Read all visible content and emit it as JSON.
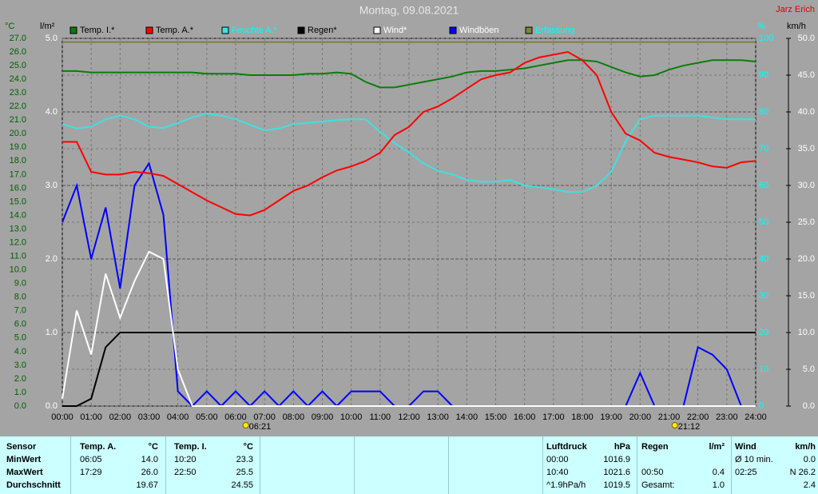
{
  "chart_data": {
    "type": "line",
    "title": "Montag, 09.08.2021",
    "station": "Jarz Erich",
    "y_label": "°C",
    "y2_label": "l/m²",
    "y3_label": "%",
    "y4_label": "km/h",
    "xlim": [
      0,
      24
    ],
    "xticks": [
      {
        "value": 0,
        "label": "00:00"
      },
      {
        "value": 1,
        "label": "01:00"
      },
      {
        "value": 2,
        "label": "02:00"
      },
      {
        "value": 3,
        "label": "03:00"
      },
      {
        "value": 4,
        "label": "04:00"
      },
      {
        "value": 5,
        "label": "05:00"
      },
      {
        "value": 6,
        "label": "06:00"
      },
      {
        "value": 7,
        "label": "07:00"
      },
      {
        "value": 8,
        "label": "08:00"
      },
      {
        "value": 9,
        "label": "09:00"
      },
      {
        "value": 10,
        "label": "10:00"
      },
      {
        "value": 11,
        "label": "11:00"
      },
      {
        "value": 12,
        "label": "12:00"
      },
      {
        "value": 13,
        "label": "13:00"
      },
      {
        "value": 14,
        "label": "14:00"
      },
      {
        "value": 15,
        "label": "15:00"
      },
      {
        "value": 16,
        "label": "16:00"
      },
      {
        "value": 17,
        "label": "17:00"
      },
      {
        "value": 18,
        "label": "18:00"
      },
      {
        "value": 19,
        "label": "19:00"
      },
      {
        "value": 20,
        "label": "20:00"
      },
      {
        "value": 21,
        "label": "21:00"
      },
      {
        "value": 22,
        "label": "22:00"
      },
      {
        "value": 23,
        "label": "23:00"
      },
      {
        "value": 24,
        "label": "24:00"
      }
    ],
    "ylim": [
      0,
      27
    ],
    "yticks": [
      {
        "value": 0,
        "label": "0.0"
      },
      {
        "value": 1,
        "label": "1.0"
      },
      {
        "value": 2,
        "label": "2.0"
      },
      {
        "value": 3,
        "label": "3.0"
      },
      {
        "value": 4,
        "label": "4.0"
      },
      {
        "value": 5,
        "label": "5.0"
      },
      {
        "value": 6,
        "label": "6.0"
      },
      {
        "value": 7,
        "label": "7.0"
      },
      {
        "value": 8,
        "label": "8.0"
      },
      {
        "value": 9,
        "label": "9.0"
      },
      {
        "value": 10,
        "label": "10.0"
      },
      {
        "value": 11,
        "label": "11.0"
      },
      {
        "value": 12,
        "label": "12.0"
      },
      {
        "value": 13,
        "label": "13.0"
      },
      {
        "value": 14,
        "label": "14.0"
      },
      {
        "value": 15,
        "label": "15.0"
      },
      {
        "value": 16,
        "label": "16.0"
      },
      {
        "value": 17,
        "label": "17.0"
      },
      {
        "value": 18,
        "label": "18.0"
      },
      {
        "value": 19,
        "label": "19.0"
      },
      {
        "value": 20,
        "label": "20.0"
      },
      {
        "value": 21,
        "label": "21.0"
      },
      {
        "value": 22,
        "label": "22.0"
      },
      {
        "value": 23,
        "label": "23.0"
      },
      {
        "value": 24,
        "label": "24.0"
      },
      {
        "value": 25,
        "label": "25.0"
      },
      {
        "value": 26,
        "label": "26.0"
      },
      {
        "value": 27,
        "label": "27.0"
      }
    ],
    "y2lim": [
      0,
      5
    ],
    "y2ticks": [
      {
        "value": 0,
        "label": "0.0"
      },
      {
        "value": 1,
        "label": "1.0"
      },
      {
        "value": 2,
        "label": "2.0"
      },
      {
        "value": 3,
        "label": "3.0"
      },
      {
        "value": 4,
        "label": "4.0"
      },
      {
        "value": 5,
        "label": "5.0"
      }
    ],
    "y3lim": [
      0,
      100
    ],
    "y3ticks": [
      0,
      10,
      20,
      30,
      40,
      50,
      60,
      70,
      80,
      90,
      100
    ],
    "y4lim": [
      0,
      50
    ],
    "y4ticks": [
      {
        "value": 0,
        "label": "0.0"
      },
      {
        "value": 5,
        "label": "5.0"
      },
      {
        "value": 10,
        "label": "10.0"
      },
      {
        "value": 15,
        "label": "15.0"
      },
      {
        "value": 20,
        "label": "20.0"
      },
      {
        "value": 25,
        "label": "25.0"
      },
      {
        "value": 30,
        "label": "30.0"
      },
      {
        "value": 35,
        "label": "35.0"
      },
      {
        "value": 40,
        "label": "40.0"
      },
      {
        "value": 45,
        "label": "45.0"
      },
      {
        "value": 50,
        "label": "50.0"
      }
    ],
    "grid": true,
    "x": [
      0,
      0.5,
      1,
      1.5,
      2,
      2.5,
      3,
      3.5,
      4,
      4.5,
      5,
      5.5,
      6,
      6.5,
      7,
      7.5,
      8,
      8.5,
      9,
      9.5,
      10,
      10.5,
      11,
      11.5,
      12,
      12.5,
      13,
      13.5,
      14,
      14.5,
      15,
      15.5,
      16,
      16.5,
      17,
      17.5,
      18,
      18.5,
      19,
      19.5,
      20,
      20.5,
      21,
      21.5,
      22,
      22.5,
      23,
      23.5,
      24
    ],
    "series": [
      {
        "name": "Temp. I.*",
        "color": "#0a7d0a",
        "axis": "y",
        "values": [
          24.6,
          24.6,
          24.5,
          24.5,
          24.5,
          24.5,
          24.5,
          24.5,
          24.5,
          24.5,
          24.4,
          24.4,
          24.4,
          24.3,
          24.3,
          24.3,
          24.3,
          24.4,
          24.4,
          24.5,
          24.4,
          23.8,
          23.4,
          23.4,
          23.6,
          23.8,
          24.0,
          24.2,
          24.5,
          24.6,
          24.6,
          24.7,
          24.8,
          25.0,
          25.2,
          25.4,
          25.4,
          25.3,
          24.9,
          24.5,
          24.2,
          24.3,
          24.7,
          25.0,
          25.2,
          25.4,
          25.4,
          25.4,
          25.3
        ]
      },
      {
        "name": "Temp. A.*",
        "color": "#ff0000",
        "axis": "y",
        "values": [
          19.4,
          19.4,
          17.2,
          17.0,
          17.0,
          17.2,
          17.1,
          16.9,
          16.3,
          15.7,
          15.1,
          14.6,
          14.1,
          14.0,
          14.4,
          15.1,
          15.8,
          16.2,
          16.8,
          17.3,
          17.6,
          18.0,
          18.6,
          19.9,
          20.5,
          21.6,
          22.0,
          22.6,
          23.3,
          24.0,
          24.3,
          24.5,
          25.2,
          25.6,
          25.8,
          26.0,
          25.4,
          24.3,
          21.6,
          20.0,
          19.5,
          18.6,
          18.3,
          18.1,
          17.9,
          17.6,
          17.5,
          17.9,
          18.0
        ]
      },
      {
        "name": "Feuchte A.*",
        "color": "#40e0e0",
        "axis": "y3",
        "values": [
          76.7,
          75.5,
          76,
          78,
          79,
          78,
          76,
          75.6,
          77,
          78.5,
          79.6,
          79,
          78,
          76.5,
          75,
          75.5,
          76.7,
          77,
          77.4,
          77.8,
          78,
          78,
          74.6,
          71.5,
          69,
          66,
          64,
          63,
          61.5,
          61,
          61,
          61.5,
          60,
          59.5,
          59,
          58.2,
          58.2,
          60,
          63.7,
          72,
          78,
          79,
          79,
          79,
          79,
          78.5,
          78,
          78,
          78
        ]
      },
      {
        "name": "Regen*",
        "color": "#000000",
        "axis": "y2",
        "values": [
          0,
          0,
          0.1,
          0.8,
          1,
          1,
          1,
          1,
          1,
          1,
          1,
          1,
          1,
          1,
          1,
          1,
          1,
          1,
          1,
          1,
          1,
          1,
          1,
          1,
          1,
          1,
          1,
          1,
          1,
          1,
          1,
          1,
          1,
          1,
          1,
          1,
          1,
          1,
          1,
          1,
          1,
          1,
          1,
          1,
          1,
          1,
          1,
          1,
          1
        ]
      },
      {
        "name": "Wind*",
        "color": "#ffffff",
        "axis": "y4",
        "values": [
          1,
          13,
          7,
          18,
          12,
          17,
          21,
          20,
          5,
          0,
          0,
          0,
          0,
          0,
          0,
          0,
          0,
          0,
          0,
          0,
          0,
          0,
          0,
          0,
          0,
          0,
          0,
          0,
          0,
          0,
          0,
          0,
          0,
          0,
          0,
          0,
          0,
          0,
          0,
          0,
          0,
          0,
          0,
          0,
          0,
          0,
          0,
          0,
          0
        ]
      },
      {
        "name": "Windböen",
        "color": "#0000ff",
        "axis": "y4",
        "values": [
          25,
          30,
          20,
          27,
          16,
          30,
          33,
          26,
          2,
          0,
          2,
          0,
          2,
          0,
          2,
          0,
          2,
          0,
          2,
          0,
          2,
          2,
          2,
          0,
          0,
          2,
          2,
          0,
          0,
          0,
          0,
          0,
          0,
          0,
          0,
          0,
          0,
          0,
          0,
          0,
          4.5,
          0,
          0,
          0,
          8,
          7,
          5,
          0,
          0
        ]
      },
      {
        "name": "Erfassung",
        "color": "#808040",
        "axis": "y3",
        "values": [
          99,
          99,
          99,
          99,
          99,
          99,
          99,
          99,
          99,
          99,
          99,
          99,
          99,
          99,
          99,
          99,
          99,
          99,
          99,
          99,
          99,
          99,
          99,
          99,
          99,
          99,
          99,
          99,
          99,
          99,
          99,
          99,
          99,
          99,
          99,
          99,
          99,
          99,
          99,
          99,
          99,
          99,
          99,
          99,
          99,
          99,
          99,
          99,
          99
        ]
      }
    ],
    "annotations": [
      {
        "x": 6.35,
        "text": "06:21"
      },
      {
        "x": 21.2,
        "text": "21:12"
      }
    ]
  },
  "table": {
    "header": [
      "Sensor",
      "Temp. A.",
      "°C",
      "Temp. I.",
      "°C",
      "Luftdruck",
      "hPa",
      "Regen",
      "l/m²",
      "Wind",
      "km/h"
    ],
    "rows": [
      [
        "MinWert",
        "06:05",
        "14.0",
        "10:20",
        "23.3",
        "00:00",
        "1016.9",
        null,
        null,
        "Ø 10 min.",
        "0.0"
      ],
      [
        "MaxWert",
        "17:29",
        "26.0",
        "22:50",
        "25.5",
        "10:40",
        "1021.6",
        "00:50",
        "0.4",
        "02:25",
        "N 26.2"
      ],
      [
        "Durchschnitt",
        null,
        "19.67",
        null,
        "24.55",
        "^1.9hPa/h",
        "1019.5",
        "Gesamt:",
        "1.0",
        null,
        "2.4"
      ]
    ]
  }
}
